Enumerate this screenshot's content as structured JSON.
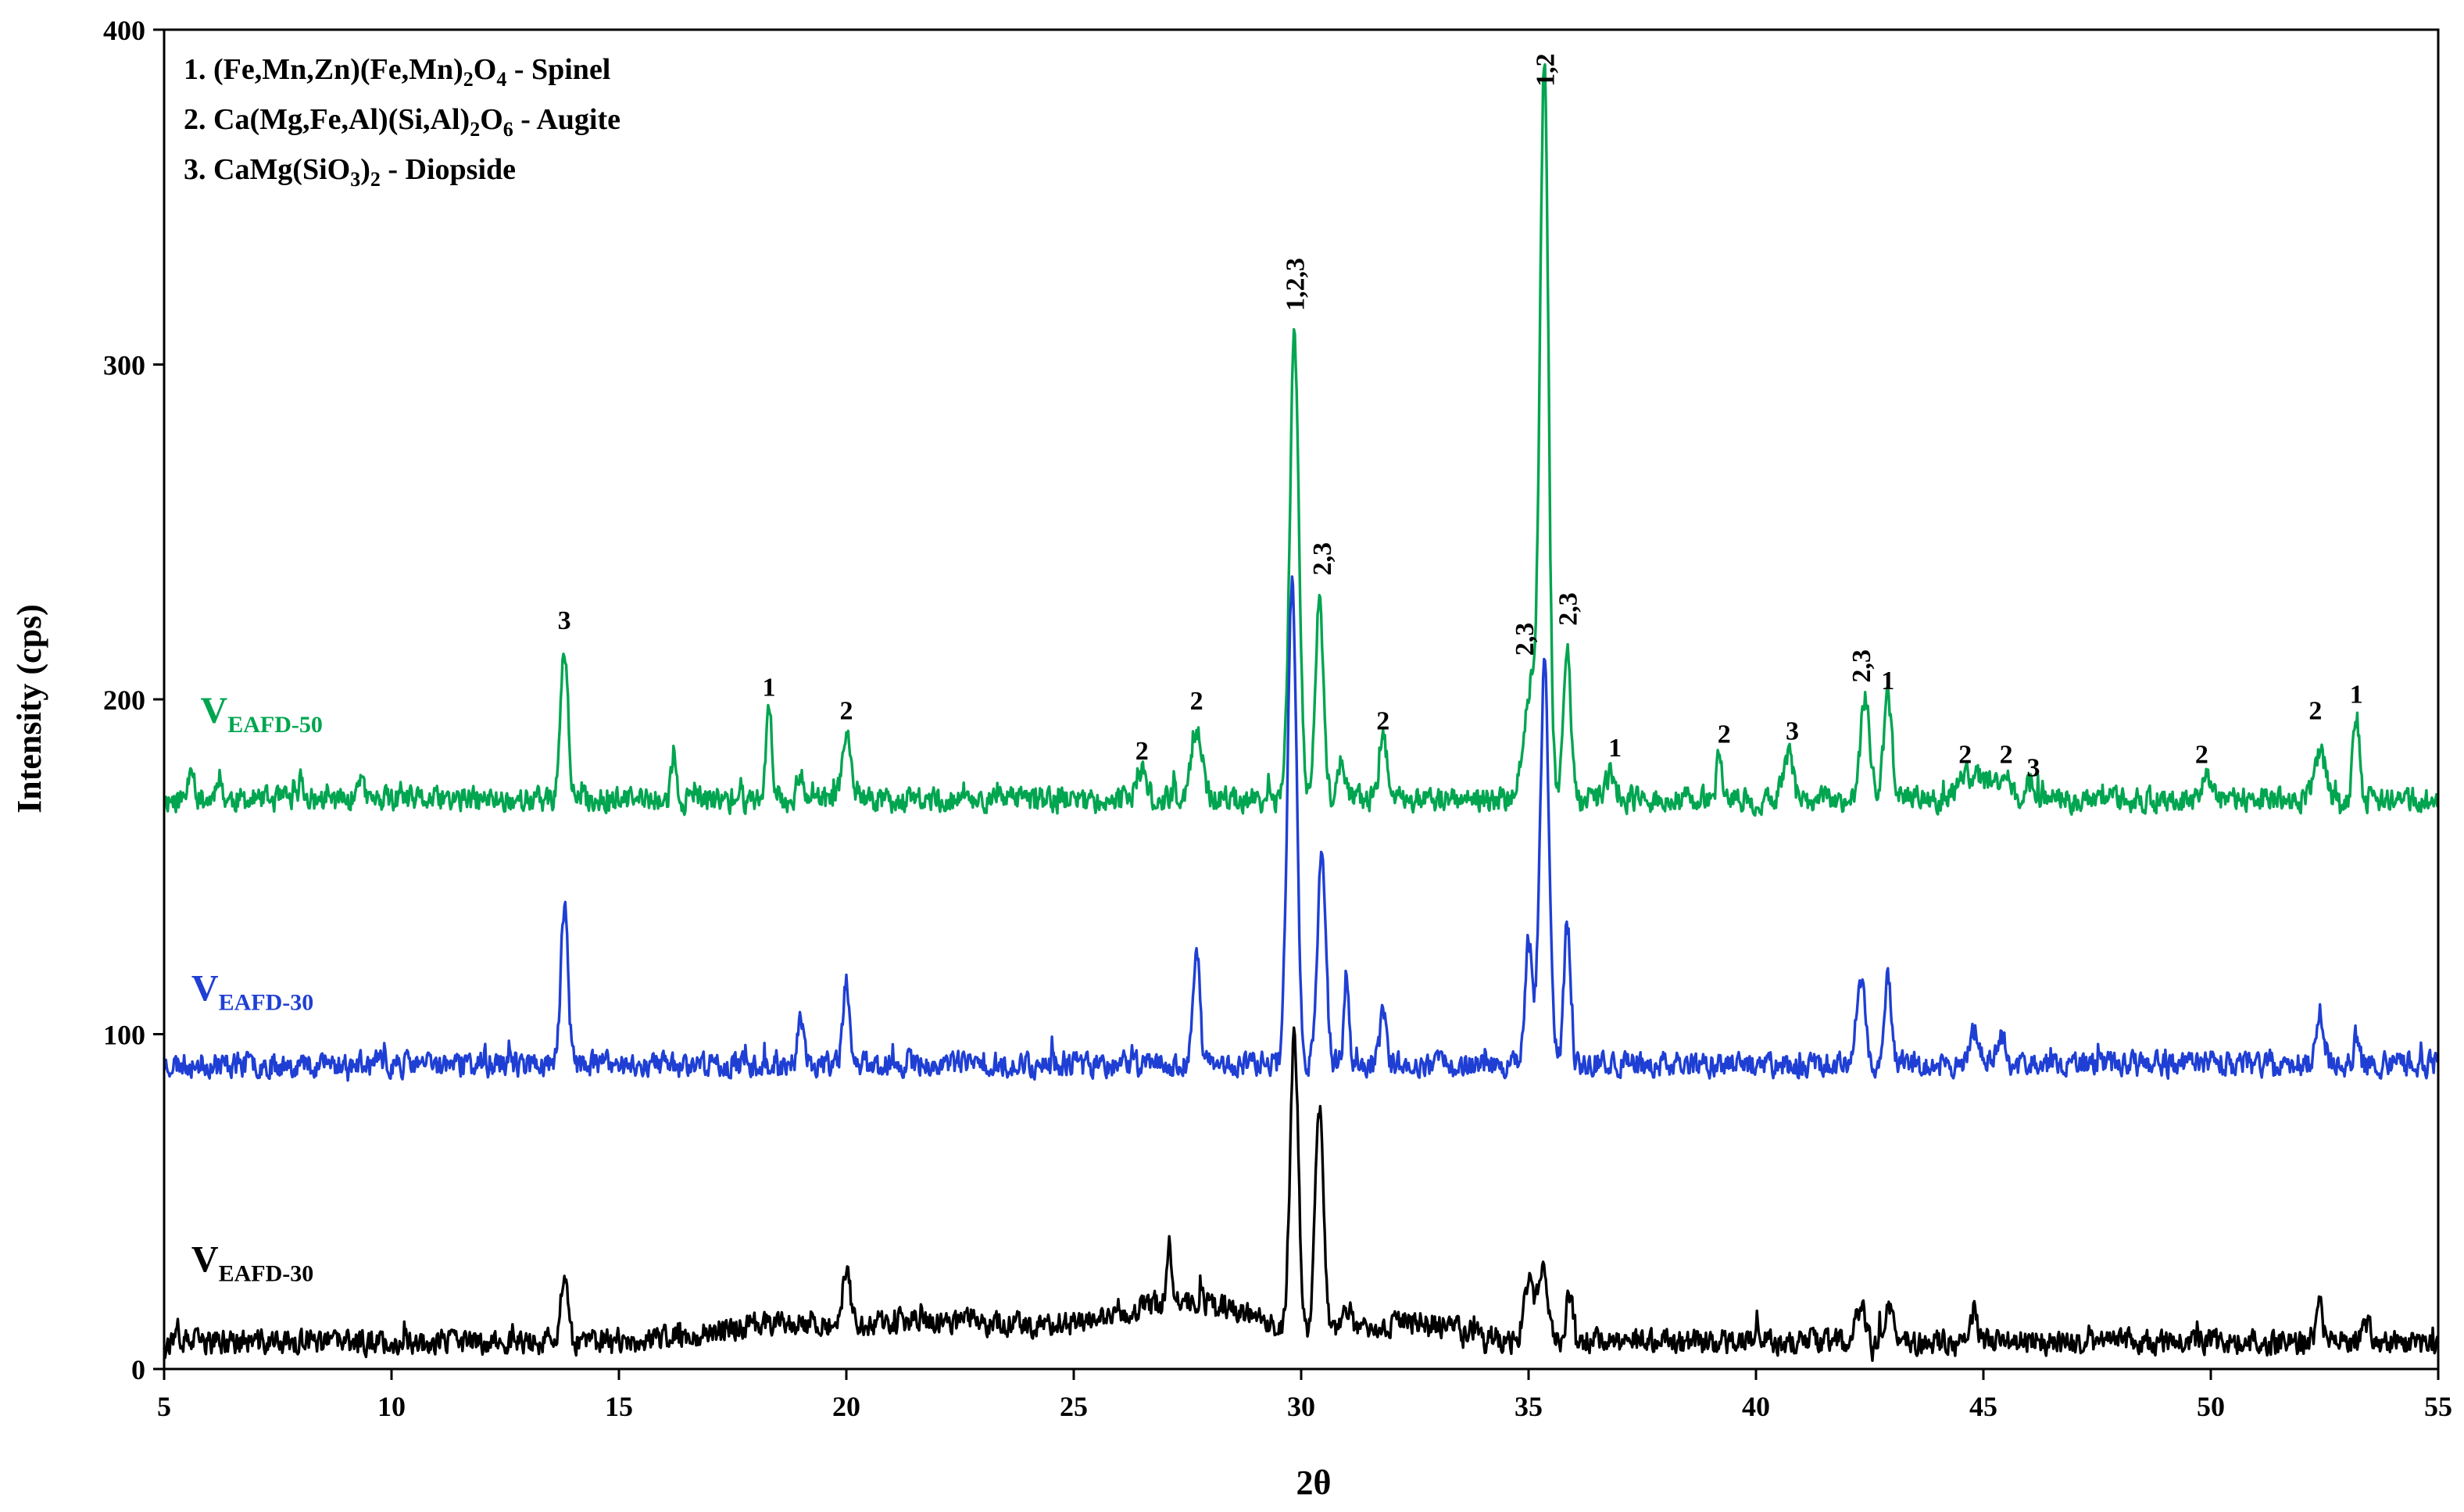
{
  "chart_data": {
    "type": "line",
    "title": "",
    "xlabel": "2θ",
    "ylabel": "Intensity (cps)",
    "xlim": [
      5,
      55
    ],
    "ylim": [
      0,
      400
    ],
    "x_ticks": [
      "5",
      "10",
      "15",
      "20",
      "25",
      "30",
      "35",
      "40",
      "45",
      "50",
      "55"
    ],
    "y_ticks": [
      "0",
      "100",
      "200",
      "300",
      "400"
    ],
    "grid": false,
    "legend": {
      "placement": "top-left",
      "entries": [
        {
          "parts": [
            [
              "1. (Fe,Mn,Zn)(Fe,Mn)",
              ""
            ],
            [
              "2",
              "sub"
            ],
            [
              "O",
              ""
            ],
            [
              "4",
              "sub"
            ],
            [
              " - Spinel",
              ""
            ]
          ]
        },
        {
          "parts": [
            [
              "2. Ca(Mg,Fe,Al)(Si,Al)",
              ""
            ],
            [
              "2",
              "sub"
            ],
            [
              "O",
              ""
            ],
            [
              "6",
              "sub"
            ],
            [
              " - Augite",
              ""
            ]
          ]
        },
        {
          "parts": [
            [
              "3. CaMg(SiO",
              ""
            ],
            [
              "3",
              "sub"
            ],
            [
              ")",
              ""
            ],
            [
              "2",
              "sub"
            ],
            [
              " - Diopside",
              ""
            ]
          ]
        }
      ]
    },
    "series": [
      {
        "name_main": "V",
        "name_sub": "EAFD-50",
        "color": "#00a550",
        "baseline": 170,
        "noise": 5,
        "label_x": 5.8,
        "label_y": 193,
        "peaks": [
          [
            5.6,
            12,
            0.06
          ],
          [
            6.2,
            8,
            0.06
          ],
          [
            8.0,
            6,
            0.06
          ],
          [
            9.3,
            8,
            0.06
          ],
          [
            13.8,
            46,
            0.08
          ],
          [
            16.2,
            14,
            0.05
          ],
          [
            18.3,
            26,
            0.07
          ],
          [
            19.0,
            8,
            0.08
          ],
          [
            20.0,
            18,
            0.1
          ],
          [
            26.5,
            8,
            0.1
          ],
          [
            27.7,
            21,
            0.12
          ],
          [
            29.85,
            138,
            0.1
          ],
          [
            30.4,
            60,
            0.09
          ],
          [
            30.9,
            12,
            0.08
          ],
          [
            31.8,
            20,
            0.08
          ],
          [
            35.1,
            36,
            0.18
          ],
          [
            35.35,
            207,
            0.09
          ],
          [
            35.85,
            45,
            0.08
          ],
          [
            36.8,
            8,
            0.12
          ],
          [
            39.2,
            14,
            0.06
          ],
          [
            40.7,
            14,
            0.1
          ],
          [
            42.4,
            30,
            0.1
          ],
          [
            42.9,
            30,
            0.09
          ],
          [
            44.8,
            8,
            0.3
          ],
          [
            45.5,
            8,
            0.12
          ],
          [
            46.0,
            6,
            0.1
          ],
          [
            49.9,
            10,
            0.08
          ],
          [
            52.4,
            15,
            0.12
          ],
          [
            53.2,
            25,
            0.07
          ]
        ],
        "seed": 11
      },
      {
        "name_main": "V",
        "name_sub": "EAFD-30",
        "color": "#1f3fd4",
        "baseline": 91,
        "noise": 5,
        "label_x": 5.6,
        "label_y": 110,
        "peaks": [
          [
            13.8,
            47,
            0.08
          ],
          [
            19.0,
            15,
            0.06
          ],
          [
            20.0,
            25,
            0.07
          ],
          [
            27.7,
            36,
            0.07
          ],
          [
            29.8,
            145,
            0.1
          ],
          [
            30.45,
            64,
            0.09
          ],
          [
            31.0,
            25,
            0.06
          ],
          [
            31.8,
            15,
            0.07
          ],
          [
            35.0,
            38,
            0.08
          ],
          [
            35.35,
            118,
            0.1
          ],
          [
            35.85,
            42,
            0.07
          ],
          [
            42.3,
            24,
            0.1
          ],
          [
            42.9,
            25,
            0.08
          ],
          [
            44.8,
            10,
            0.1
          ],
          [
            45.4,
            8,
            0.1
          ],
          [
            52.4,
            15,
            0.07
          ],
          [
            53.2,
            8,
            0.06
          ]
        ],
        "seed": 23
      },
      {
        "name_main": "V",
        "name_sub": "EAFD-30",
        "color": "#000000",
        "baseline": 8,
        "noise": 5,
        "label_x": 5.6,
        "label_y": 29,
        "peaks": [
          [
            13.8,
            22,
            0.07
          ],
          [
            18.5,
            5,
            1.5
          ],
          [
            20.0,
            16,
            0.08
          ],
          [
            22.5,
            6,
            2.0
          ],
          [
            27.5,
            12,
            1.5
          ],
          [
            27.1,
            20,
            0.05
          ],
          [
            29.85,
            88,
            0.09
          ],
          [
            30.4,
            68,
            0.09
          ],
          [
            31.0,
            8,
            0.1
          ],
          [
            32.5,
            6,
            1.0
          ],
          [
            35.0,
            18,
            0.1
          ],
          [
            35.3,
            22,
            0.1
          ],
          [
            35.9,
            14,
            0.08
          ],
          [
            42.3,
            10,
            0.1
          ],
          [
            42.9,
            10,
            0.1
          ],
          [
            44.8,
            10,
            0.06
          ],
          [
            52.4,
            12,
            0.06
          ],
          [
            53.4,
            6,
            0.1
          ]
        ],
        "seed": 37
      }
    ],
    "annotations": [
      {
        "text": "3",
        "x": 13.8,
        "y": 221,
        "rotate": false
      },
      {
        "text": "1",
        "x": 18.3,
        "y": 201,
        "rotate": false
      },
      {
        "text": "2",
        "x": 20.0,
        "y": 194,
        "rotate": false
      },
      {
        "text": "2",
        "x": 26.5,
        "y": 182,
        "rotate": false
      },
      {
        "text": "2",
        "x": 27.7,
        "y": 197,
        "rotate": false
      },
      {
        "text": "1,2,3",
        "x": 29.85,
        "y": 316,
        "rotate": true
      },
      {
        "text": "2,3",
        "x": 30.45,
        "y": 237,
        "rotate": true
      },
      {
        "text": "2",
        "x": 31.8,
        "y": 191,
        "rotate": false
      },
      {
        "text": "2,3",
        "x": 34.9,
        "y": 213,
        "rotate": true
      },
      {
        "text": "1,2",
        "x": 35.35,
        "y": 383,
        "rotate": true
      },
      {
        "text": "2,3",
        "x": 35.85,
        "y": 222,
        "rotate": true
      },
      {
        "text": "1",
        "x": 36.9,
        "y": 183,
        "rotate": false
      },
      {
        "text": "2",
        "x": 39.3,
        "y": 187,
        "rotate": false
      },
      {
        "text": "3",
        "x": 40.8,
        "y": 188,
        "rotate": false
      },
      {
        "text": "2,3",
        "x": 42.3,
        "y": 205,
        "rotate": true
      },
      {
        "text": "1",
        "x": 42.9,
        "y": 203,
        "rotate": false
      },
      {
        "text": "2",
        "x": 44.6,
        "y": 181,
        "rotate": false
      },
      {
        "text": "2",
        "x": 45.5,
        "y": 181,
        "rotate": false
      },
      {
        "text": "3",
        "x": 46.1,
        "y": 177,
        "rotate": false
      },
      {
        "text": "2",
        "x": 49.8,
        "y": 181,
        "rotate": false
      },
      {
        "text": "2",
        "x": 52.3,
        "y": 194,
        "rotate": false
      },
      {
        "text": "1",
        "x": 53.2,
        "y": 199,
        "rotate": false
      }
    ]
  }
}
